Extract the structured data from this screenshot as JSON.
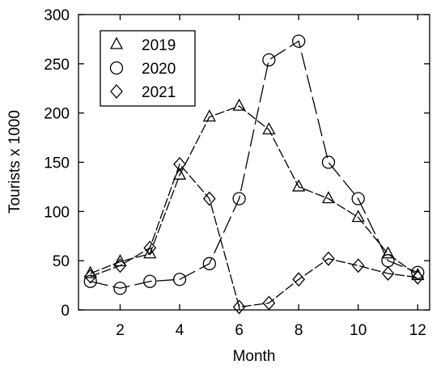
{
  "chart_data": {
    "type": "line",
    "xlabel": "Month",
    "ylabel": "Tourists x 1000",
    "xlim": [
      0.6,
      12.4
    ],
    "ylim": [
      0,
      300
    ],
    "x_ticks": [
      2,
      4,
      6,
      8,
      10,
      12
    ],
    "y_ticks": [
      0,
      50,
      100,
      150,
      200,
      250,
      300
    ],
    "grid": false,
    "legend_position": "top-left",
    "x": [
      1,
      2,
      3,
      4,
      5,
      6,
      7,
      8,
      9,
      10,
      11,
      12
    ],
    "series": [
      {
        "name": "2019",
        "marker": "triangle",
        "values": [
          37,
          49,
          57,
          137,
          196,
          207,
          183,
          125,
          113,
          94,
          57,
          35
        ]
      },
      {
        "name": "2020",
        "marker": "circle",
        "values": [
          29,
          22,
          29,
          31,
          47,
          113,
          254,
          273,
          150,
          113,
          50,
          38
        ]
      },
      {
        "name": "2021",
        "marker": "diamond",
        "values": [
          34,
          45,
          63,
          148,
          113,
          3,
          7,
          31,
          52,
          45,
          37,
          33
        ]
      }
    ],
    "line_color": "#000000"
  }
}
